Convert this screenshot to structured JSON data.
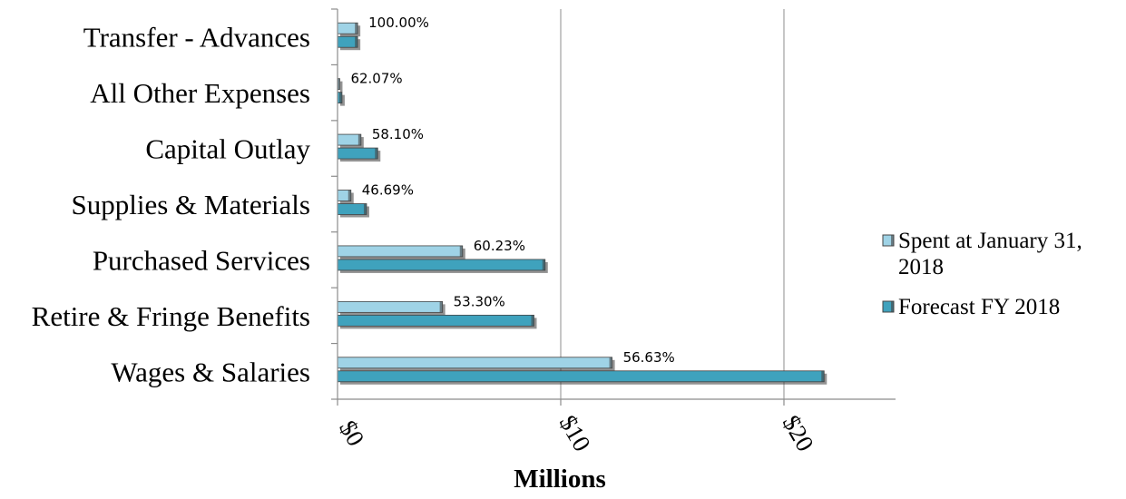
{
  "chart_data": {
    "type": "bar",
    "orientation": "horizontal",
    "categories": [
      "Transfer - Advances",
      "All Other Expenses",
      "Capital Outlay",
      "Supplies & Materials",
      "Purchased Services",
      "Retire & Fringe Benefits",
      "Wages & Salaries"
    ],
    "series": [
      {
        "name": "Spent at January 31, 2018",
        "values": [
          0.9,
          0.1,
          1.05,
          0.6,
          5.6,
          4.7,
          12.3
        ],
        "color": "#9fd3e6"
      },
      {
        "name": "Forecast FY 2018",
        "values": [
          0.9,
          0.2,
          1.8,
          1.3,
          9.3,
          8.8,
          21.8
        ],
        "color": "#3fa2bd"
      }
    ],
    "data_labels": [
      "100.00%",
      "62.07%",
      "58.10%",
      "46.69%",
      "60.23%",
      "53.30%",
      "56.63%"
    ],
    "xlabel": "Millions",
    "ylabel": "",
    "xlim": [
      0,
      25
    ],
    "x_ticks": [
      0,
      10,
      20
    ],
    "x_tick_labels": [
      "$0",
      "$10",
      "$20"
    ],
    "grid": true,
    "legend_position": "right",
    "legend": [
      "Spent at January 31, 2018",
      "Forecast FY 2018"
    ]
  }
}
